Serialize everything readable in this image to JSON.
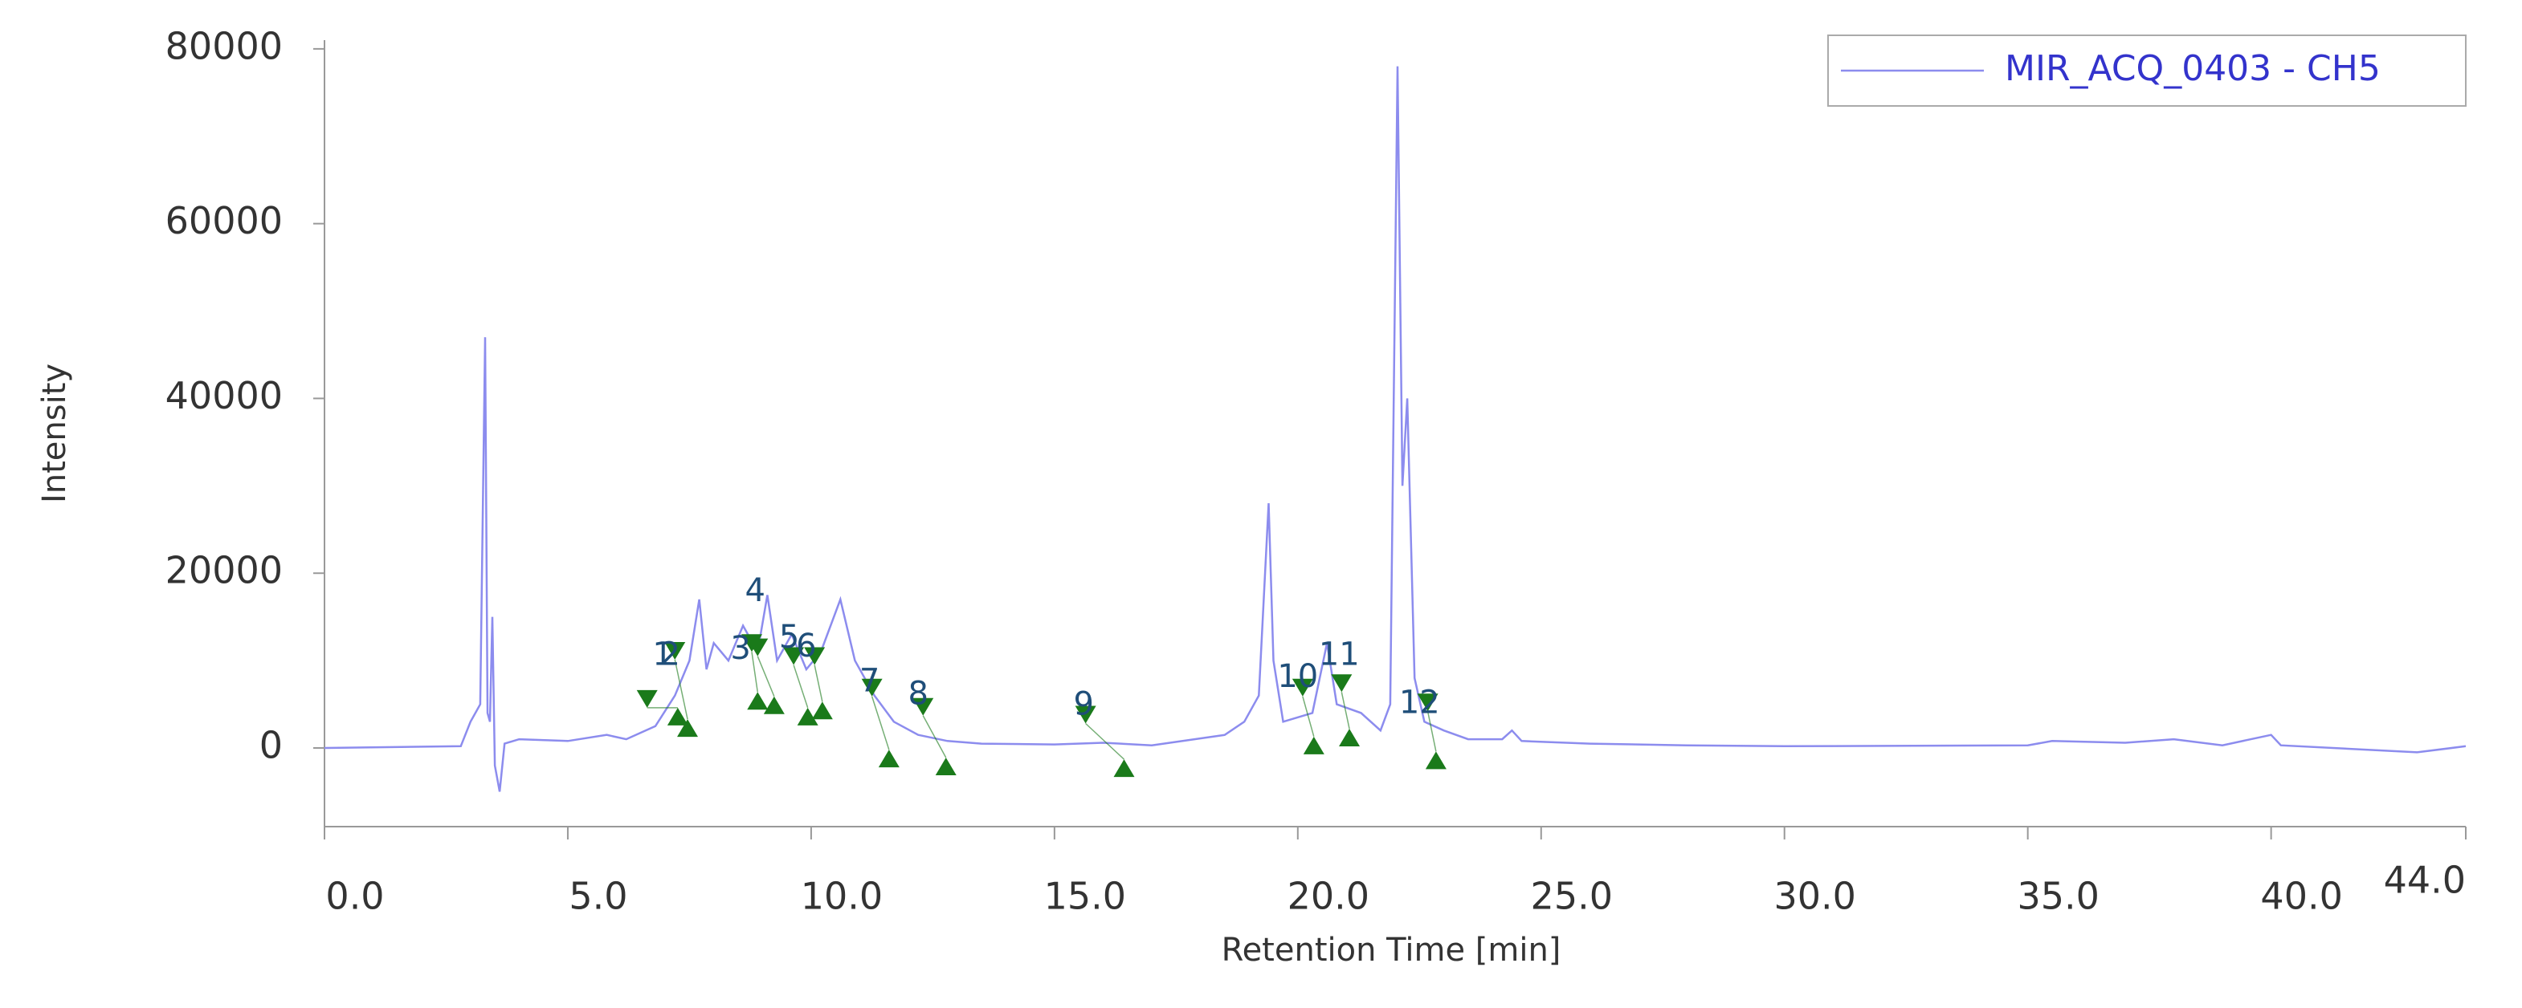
{
  "chart_data": {
    "type": "line",
    "x_label": "Retention Time [min]",
    "y_label": "Intensity",
    "xlim": [
      0,
      44
    ],
    "ylim": [
      -9000,
      81000
    ],
    "xticks": [
      {
        "value": 0,
        "label": "0.0"
      },
      {
        "value": 5,
        "label": "5.0"
      },
      {
        "value": 10,
        "label": "10.0"
      },
      {
        "value": 15,
        "label": "15.0"
      },
      {
        "value": 20,
        "label": "20.0"
      },
      {
        "value": 25,
        "label": "25.0"
      },
      {
        "value": 30,
        "label": "30.0"
      },
      {
        "value": 35,
        "label": "35.0"
      },
      {
        "value": 40,
        "label": "40.0"
      },
      {
        "value": 44,
        "label": "44.0"
      }
    ],
    "yticks": [
      0,
      20000,
      40000,
      60000,
      80000
    ],
    "grid": false,
    "legend": "top-right",
    "x": [
      0,
      2.8,
      3.0,
      3.2,
      3.3,
      3.35,
      3.4,
      3.45,
      3.5,
      3.6,
      3.7,
      4.0,
      5.0,
      5.8,
      6.2,
      6.8,
      7.2,
      7.5,
      7.7,
      7.85,
      8.0,
      8.3,
      8.6,
      8.9,
      9.1,
      9.3,
      9.6,
      9.9,
      10.2,
      10.6,
      10.9,
      11.3,
      11.7,
      12.2,
      12.8,
      13.5,
      15,
      16,
      17,
      18.5,
      18.9,
      19.2,
      19.4,
      19.5,
      19.7,
      20.3,
      20.6,
      20.8,
      21.3,
      21.7,
      21.9,
      22.05,
      22.15,
      22.25,
      22.4,
      22.6,
      23.0,
      23.5,
      24.2,
      24.4,
      24.6,
      26,
      28,
      30,
      35,
      35.5,
      37,
      38,
      39,
      40,
      40.2,
      43,
      44
    ],
    "series": [
      {
        "name": "MIR_ACQ_0403 - CH5",
        "color": "#8c8cee",
        "values": [
          0,
          200,
          3000,
          5000,
          47000,
          4000,
          3000,
          15000,
          -2000,
          -5000,
          500,
          1000,
          800,
          1500,
          1000,
          2500,
          6000,
          10000,
          17000,
          9000,
          12000,
          10000,
          14000,
          11000,
          17500,
          10000,
          13000,
          9000,
          11000,
          17000,
          10000,
          6000,
          3000,
          1500,
          800,
          500,
          400,
          600,
          300,
          1500,
          3000,
          6000,
          28000,
          10000,
          3000,
          4000,
          12000,
          5000,
          4000,
          2000,
          5000,
          78000,
          30000,
          40000,
          8000,
          3000,
          2000,
          1000,
          1000,
          2000,
          800,
          500,
          300,
          200,
          300,
          800,
          600,
          1000,
          300,
          1500,
          300,
          -500,
          200
        ]
      }
    ],
    "peak_color": "#1a7a1a",
    "peaks": [
      {
        "label": "1",
        "x": 6.95,
        "y": 10500,
        "start": {
          "x": 6.63,
          "y": 4600
        },
        "end": {
          "x": 7.26,
          "y": 4600
        }
      },
      {
        "label": "2",
        "x": 7.1,
        "y": 10500,
        "start": {
          "x": 7.2,
          "y": 10100
        },
        "end": {
          "x": 7.46,
          "y": 3300
        }
      },
      {
        "label": "3",
        "x": 8.55,
        "y": 11200,
        "start": {
          "x": 8.78,
          "y": 11000
        },
        "end": {
          "x": 8.9,
          "y": 6400
        }
      },
      {
        "label": "4",
        "x": 8.85,
        "y": 17800,
        "start": {
          "x": 8.9,
          "y": 10500
        },
        "end": {
          "x": 9.24,
          "y": 5900
        }
      },
      {
        "label": "5",
        "x": 9.55,
        "y": 12500,
        "start": {
          "x": 9.64,
          "y": 9500
        },
        "end": {
          "x": 9.93,
          "y": 4600
        }
      },
      {
        "label": "6",
        "x": 9.9,
        "y": 11500,
        "start": {
          "x": 10.07,
          "y": 9500
        },
        "end": {
          "x": 10.23,
          "y": 5300
        }
      },
      {
        "label": "7",
        "x": 11.2,
        "y": 7500,
        "start": {
          "x": 11.25,
          "y": 5900
        },
        "end": {
          "x": 11.6,
          "y": -200
        }
      },
      {
        "label": "8",
        "x": 12.2,
        "y": 6000,
        "start": {
          "x": 12.3,
          "y": 3700
        },
        "end": {
          "x": 12.77,
          "y": -1100
        }
      },
      {
        "label": "9",
        "x": 15.6,
        "y": 4800,
        "start": {
          "x": 15.64,
          "y": 2800
        },
        "end": {
          "x": 16.43,
          "y": -1300
        }
      },
      {
        "label": "10",
        "x": 20.0,
        "y": 8000,
        "start": {
          "x": 20.1,
          "y": 5900
        },
        "end": {
          "x": 20.33,
          "y": 1300
        }
      },
      {
        "label": "11",
        "x": 20.85,
        "y": 10500,
        "start": {
          "x": 20.9,
          "y": 6400
        },
        "end": {
          "x": 21.06,
          "y": 2200
        }
      },
      {
        "label": "12",
        "x": 22.5,
        "y": 5000,
        "start": {
          "x": 22.67,
          "y": 4200
        },
        "end": {
          "x": 22.84,
          "y": -400
        }
      }
    ]
  }
}
